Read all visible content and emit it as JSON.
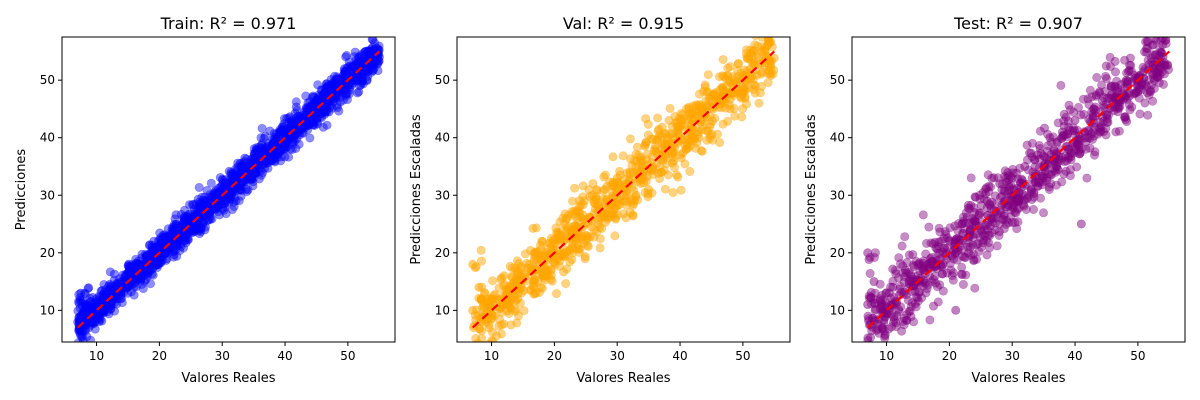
{
  "chart_data": [
    {
      "type": "scatter",
      "title": "Train: R² = 0.971",
      "xlabel": "Valores Reales",
      "ylabel": "Predicciones",
      "xlim": [
        4.5,
        57.5
      ],
      "ylim": [
        4.5,
        57.5
      ],
      "xticks": [
        10,
        20,
        30,
        40,
        50
      ],
      "yticks": [
        10,
        20,
        30,
        40,
        50
      ],
      "grid": false,
      "point_color": "#0000ff",
      "point_alpha": 0.5,
      "reference_line": {
        "from": [
          7,
          7
        ],
        "to": [
          55,
          55
        ],
        "color": "#ff0000",
        "style": "dashed"
      },
      "noise_level": 1.5,
      "density": "high",
      "points": [
        [
          7,
          8
        ],
        [
          7.5,
          13
        ],
        [
          8,
          10
        ],
        [
          9,
          11
        ],
        [
          10,
          12
        ],
        [
          11,
          10
        ],
        [
          12,
          13
        ],
        [
          13,
          12
        ],
        [
          14,
          15
        ],
        [
          15,
          14
        ],
        [
          16,
          17
        ],
        [
          17,
          16
        ],
        [
          18,
          19
        ],
        [
          19,
          20
        ],
        [
          20,
          21
        ],
        [
          21,
          20
        ],
        [
          22,
          24
        ],
        [
          23,
          22
        ],
        [
          24,
          25
        ],
        [
          25,
          26
        ],
        [
          26,
          25
        ],
        [
          27,
          28
        ],
        [
          28,
          27
        ],
        [
          29,
          30
        ],
        [
          30,
          31
        ],
        [
          31,
          30
        ],
        [
          32,
          33
        ],
        [
          33,
          32
        ],
        [
          34,
          35
        ],
        [
          35,
          36
        ],
        [
          36,
          37
        ],
        [
          37,
          36
        ],
        [
          38,
          39
        ],
        [
          39,
          40
        ],
        [
          40,
          41
        ],
        [
          41,
          40
        ],
        [
          42,
          43
        ],
        [
          43,
          42
        ],
        [
          44,
          45
        ],
        [
          45,
          46
        ],
        [
          46,
          45
        ],
        [
          47,
          48
        ],
        [
          48,
          47
        ],
        [
          50,
          49
        ],
        [
          52,
          52
        ],
        [
          54,
          53
        ],
        [
          55,
          54
        ]
      ]
    },
    {
      "type": "scatter",
      "title": "Val: R² = 0.915",
      "xlabel": "Valores Reales",
      "ylabel": "Predicciones Escaladas",
      "xlim": [
        4.5,
        57.5
      ],
      "ylim": [
        4.5,
        57.5
      ],
      "xticks": [
        10,
        20,
        30,
        40,
        50
      ],
      "yticks": [
        10,
        20,
        30,
        40,
        50
      ],
      "grid": false,
      "point_color": "#ffa500",
      "point_alpha": 0.55,
      "reference_line": {
        "from": [
          7,
          7
        ],
        "to": [
          55,
          55
        ],
        "color": "#ff0000",
        "style": "dashed"
      },
      "noise_level": 2.8,
      "density": "medium",
      "points": [
        [
          7,
          10
        ],
        [
          7,
          18
        ],
        [
          8,
          14
        ],
        [
          10,
          12
        ],
        [
          12,
          16
        ],
        [
          14,
          15
        ],
        [
          16,
          18
        ],
        [
          18,
          22
        ],
        [
          19,
          16
        ],
        [
          20,
          20
        ],
        [
          21,
          23
        ],
        [
          22,
          26
        ],
        [
          23,
          24
        ],
        [
          24,
          28
        ],
        [
          25,
          23
        ],
        [
          26,
          30
        ],
        [
          27,
          25
        ],
        [
          28,
          31
        ],
        [
          29,
          27
        ],
        [
          30,
          33
        ],
        [
          31,
          29
        ],
        [
          32,
          34
        ],
        [
          33,
          30
        ],
        [
          34,
          36
        ],
        [
          35,
          31
        ],
        [
          36,
          38
        ],
        [
          37,
          34
        ],
        [
          38,
          40
        ],
        [
          39,
          36
        ],
        [
          40,
          42
        ],
        [
          41,
          38
        ],
        [
          42,
          44
        ],
        [
          43,
          40
        ],
        [
          44,
          45
        ],
        [
          46,
          47
        ],
        [
          48,
          45
        ],
        [
          50,
          48
        ],
        [
          52,
          49
        ],
        [
          54,
          54
        ]
      ]
    },
    {
      "type": "scatter",
      "title": "Test: R² = 0.907",
      "xlabel": "Valores Reales",
      "ylabel": "Predicciones Escaladas",
      "xlim": [
        4.5,
        57.5
      ],
      "ylim": [
        4.5,
        57.5
      ],
      "xticks": [
        10,
        20,
        30,
        40,
        50
      ],
      "yticks": [
        10,
        20,
        30,
        40,
        50
      ],
      "grid": false,
      "point_color": "#800080",
      "point_alpha": 0.5,
      "reference_line": {
        "from": [
          7,
          7
        ],
        "to": [
          55,
          55
        ],
        "color": "#ff0000",
        "style": "dashed"
      },
      "noise_level": 3.0,
      "density": "medium",
      "points": [
        [
          7,
          11
        ],
        [
          7,
          20
        ],
        [
          8,
          15
        ],
        [
          9,
          12
        ],
        [
          11,
          14
        ],
        [
          13,
          17
        ],
        [
          15,
          16
        ],
        [
          17,
          19
        ],
        [
          19,
          18
        ],
        [
          20,
          22
        ],
        [
          21,
          10
        ],
        [
          22,
          25
        ],
        [
          23,
          21
        ],
        [
          24,
          27
        ],
        [
          25,
          24
        ],
        [
          26,
          29
        ],
        [
          27,
          26
        ],
        [
          28,
          32
        ],
        [
          29,
          28
        ],
        [
          30,
          33
        ],
        [
          31,
          29
        ],
        [
          32,
          35
        ],
        [
          33,
          31
        ],
        [
          34,
          37
        ],
        [
          35,
          33
        ],
        [
          36,
          40
        ],
        [
          37,
          35
        ],
        [
          38,
          41
        ],
        [
          39,
          38
        ],
        [
          40,
          43
        ],
        [
          41,
          25
        ],
        [
          42,
          40
        ],
        [
          43,
          45
        ],
        [
          44,
          41
        ],
        [
          46,
          46
        ],
        [
          48,
          47
        ],
        [
          50,
          49
        ],
        [
          52,
          48
        ],
        [
          54,
          54
        ]
      ]
    }
  ]
}
